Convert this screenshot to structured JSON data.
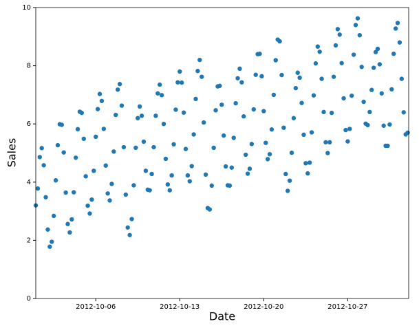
{
  "chart_data": {
    "type": "scatter",
    "x_label": "Date",
    "y_label": "Sales",
    "color": "#1f77b4",
    "grid": false,
    "xlim": [
      "2012-10-01 00:00",
      "2012-11-01 02:00"
    ],
    "xticks": [
      "2012-10-06",
      "2012-10-13",
      "2012-10-20",
      "2012-10-27"
    ],
    "ylim": [
      0,
      10
    ],
    "yticks": [
      0,
      2,
      4,
      6,
      8,
      10
    ],
    "x": [
      "2012-10-01 00:00",
      "2012-10-01 04:00",
      "2012-10-01 08:00",
      "2012-10-01 12:00",
      "2012-10-01 16:00",
      "2012-10-01 20:00",
      "2012-10-02 00:00",
      "2012-10-02 04:00",
      "2012-10-02 08:00",
      "2012-10-02 12:00",
      "2012-10-02 16:00",
      "2012-10-02 20:00",
      "2012-10-03 00:00",
      "2012-10-03 04:00",
      "2012-10-03 08:00",
      "2012-10-03 12:00",
      "2012-10-03 16:00",
      "2012-10-03 20:00",
      "2012-10-04 00:00",
      "2012-10-04 04:00",
      "2012-10-04 08:00",
      "2012-10-04 12:00",
      "2012-10-04 16:00",
      "2012-10-04 20:00",
      "2012-10-05 00:00",
      "2012-10-05 04:00",
      "2012-10-05 08:00",
      "2012-10-05 12:00",
      "2012-10-05 16:00",
      "2012-10-05 20:00",
      "2012-10-06 00:00",
      "2012-10-06 04:00",
      "2012-10-06 08:00",
      "2012-10-06 12:00",
      "2012-10-06 16:00",
      "2012-10-06 20:00",
      "2012-10-07 00:00",
      "2012-10-07 04:00",
      "2012-10-07 08:00",
      "2012-10-07 12:00",
      "2012-10-07 16:00",
      "2012-10-07 20:00",
      "2012-10-08 00:00",
      "2012-10-08 04:00",
      "2012-10-08 08:00",
      "2012-10-08 12:00",
      "2012-10-08 16:00",
      "2012-10-08 20:00",
      "2012-10-09 00:00",
      "2012-10-09 04:00",
      "2012-10-09 08:00",
      "2012-10-09 12:00",
      "2012-10-09 16:00",
      "2012-10-09 20:00",
      "2012-10-10 00:00",
      "2012-10-10 04:00",
      "2012-10-10 08:00",
      "2012-10-10 12:00",
      "2012-10-10 16:00",
      "2012-10-10 20:00",
      "2012-10-11 00:00",
      "2012-10-11 04:00",
      "2012-10-11 08:00",
      "2012-10-11 12:00",
      "2012-10-11 16:00",
      "2012-10-11 20:00",
      "2012-10-12 00:00",
      "2012-10-12 04:00",
      "2012-10-12 08:00",
      "2012-10-12 12:00",
      "2012-10-12 16:00",
      "2012-10-12 20:00",
      "2012-10-13 00:00",
      "2012-10-13 04:00",
      "2012-10-13 08:00",
      "2012-10-13 12:00",
      "2012-10-13 16:00",
      "2012-10-13 20:00",
      "2012-10-14 00:00",
      "2012-10-14 04:00",
      "2012-10-14 08:00",
      "2012-10-14 12:00",
      "2012-10-14 16:00",
      "2012-10-14 20:00",
      "2012-10-15 00:00",
      "2012-10-15 04:00",
      "2012-10-15 08:00",
      "2012-10-15 12:00",
      "2012-10-15 16:00",
      "2012-10-15 20:00",
      "2012-10-16 00:00",
      "2012-10-16 04:00",
      "2012-10-16 08:00",
      "2012-10-16 12:00",
      "2012-10-16 16:00",
      "2012-10-16 20:00",
      "2012-10-17 00:00",
      "2012-10-17 04:00",
      "2012-10-17 08:00",
      "2012-10-17 12:00",
      "2012-10-17 16:00",
      "2012-10-17 20:00",
      "2012-10-18 00:00",
      "2012-10-18 04:00",
      "2012-10-18 08:00",
      "2012-10-18 12:00",
      "2012-10-18 16:00",
      "2012-10-18 20:00",
      "2012-10-19 00:00",
      "2012-10-19 04:00",
      "2012-10-19 08:00",
      "2012-10-19 12:00",
      "2012-10-19 16:00",
      "2012-10-19 20:00",
      "2012-10-20 00:00",
      "2012-10-20 04:00",
      "2012-10-20 08:00",
      "2012-10-20 12:00",
      "2012-10-20 16:00",
      "2012-10-20 20:00",
      "2012-10-21 00:00",
      "2012-10-21 04:00",
      "2012-10-21 08:00",
      "2012-10-21 12:00",
      "2012-10-21 16:00",
      "2012-10-21 20:00",
      "2012-10-22 00:00",
      "2012-10-22 04:00",
      "2012-10-22 08:00",
      "2012-10-22 12:00",
      "2012-10-22 16:00",
      "2012-10-22 20:00",
      "2012-10-23 00:00",
      "2012-10-23 04:00",
      "2012-10-23 08:00",
      "2012-10-23 12:00",
      "2012-10-23 16:00",
      "2012-10-23 20:00",
      "2012-10-24 00:00",
      "2012-10-24 04:00",
      "2012-10-24 08:00",
      "2012-10-24 12:00",
      "2012-10-24 16:00",
      "2012-10-24 20:00",
      "2012-10-25 00:00",
      "2012-10-25 04:00",
      "2012-10-25 08:00",
      "2012-10-25 12:00",
      "2012-10-25 16:00",
      "2012-10-25 20:00",
      "2012-10-26 00:00",
      "2012-10-26 04:00",
      "2012-10-26 08:00",
      "2012-10-26 12:00",
      "2012-10-26 16:00",
      "2012-10-26 20:00",
      "2012-10-27 00:00",
      "2012-10-27 04:00",
      "2012-10-27 08:00",
      "2012-10-27 12:00",
      "2012-10-27 16:00",
      "2012-10-27 20:00",
      "2012-10-28 00:00",
      "2012-10-28 04:00",
      "2012-10-28 08:00",
      "2012-10-28 12:00",
      "2012-10-28 16:00",
      "2012-10-28 20:00",
      "2012-10-29 00:00",
      "2012-10-29 04:00",
      "2012-10-29 08:00",
      "2012-10-29 12:00",
      "2012-10-29 16:00",
      "2012-10-29 20:00",
      "2012-10-30 00:00",
      "2012-10-30 04:00",
      "2012-10-30 08:00",
      "2012-10-30 12:00",
      "2012-10-30 16:00",
      "2012-10-30 20:00",
      "2012-10-31 00:00",
      "2012-10-31 04:00",
      "2012-10-31 08:00",
      "2012-10-31 12:00",
      "2012-10-31 16:00",
      "2012-10-31 20:00",
      "2012-11-01 00:00"
    ],
    "values": [
      3.2,
      3.78,
      4.86,
      5.17,
      4.58,
      3.48,
      2.37,
      1.78,
      1.95,
      2.84,
      4.06,
      5.27,
      5.99,
      5.97,
      5.02,
      3.64,
      2.56,
      2.27,
      2.72,
      3.65,
      4.84,
      5.82,
      6.42,
      6.38,
      5.49,
      4.2,
      3.19,
      2.92,
      3.4,
      4.39,
      5.56,
      6.51,
      7.03,
      6.79,
      5.83,
      4.57,
      3.61,
      3.37,
      3.94,
      5.05,
      6.31,
      7.18,
      7.37,
      6.63,
      5.2,
      3.57,
      2.44,
      2.18,
      2.73,
      3.89,
      5.18,
      6.2,
      6.6,
      6.28,
      5.39,
      4.39,
      3.74,
      3.72,
      4.28,
      5.2,
      6.28,
      7.05,
      7.35,
      6.99,
      6.0,
      4.8,
      3.92,
      3.72,
      4.23,
      5.3,
      6.49,
      7.43,
      7.8,
      7.42,
      6.39,
      5.14,
      4.23,
      4.03,
      4.55,
      5.64,
      6.86,
      7.82,
      8.2,
      7.62,
      6.05,
      4.26,
      3.11,
      3.06,
      3.88,
      5.18,
      6.47,
      7.29,
      7.31,
      6.66,
      5.6,
      4.54,
      3.89,
      3.88,
      4.5,
      5.52,
      6.71,
      7.57,
      7.9,
      7.43,
      6.26,
      4.94,
      4.29,
      4.46,
      5.31,
      6.5,
      7.69,
      8.4,
      8.41,
      7.64,
      6.44,
      5.35,
      4.79,
      4.96,
      5.81,
      7.0,
      8.19,
      8.9,
      8.84,
      7.68,
      5.87,
      4.28,
      3.7,
      4.05,
      5.01,
      6.2,
      7.23,
      7.76,
      7.59,
      6.72,
      5.63,
      4.65,
      4.3,
      4.67,
      5.71,
      6.98,
      8.08,
      8.66,
      8.48,
      7.55,
      6.41,
      5.37,
      5.0,
      5.37,
      6.38,
      7.62,
      8.7,
      9.26,
      9.07,
      8.09,
      6.88,
      5.79,
      5.4,
      5.83,
      6.97,
      8.38,
      9.4,
      9.63,
      9.05,
      7.96,
      6.76,
      6.01,
      5.96,
      6.41,
      7.17,
      7.93,
      8.47,
      8.58,
      8.05,
      7.05,
      5.94,
      5.25,
      5.25,
      5.98,
      7.19,
      8.41,
      9.28,
      9.47,
      8.8,
      7.55,
      6.4,
      5.64,
      5.7
    ]
  }
}
